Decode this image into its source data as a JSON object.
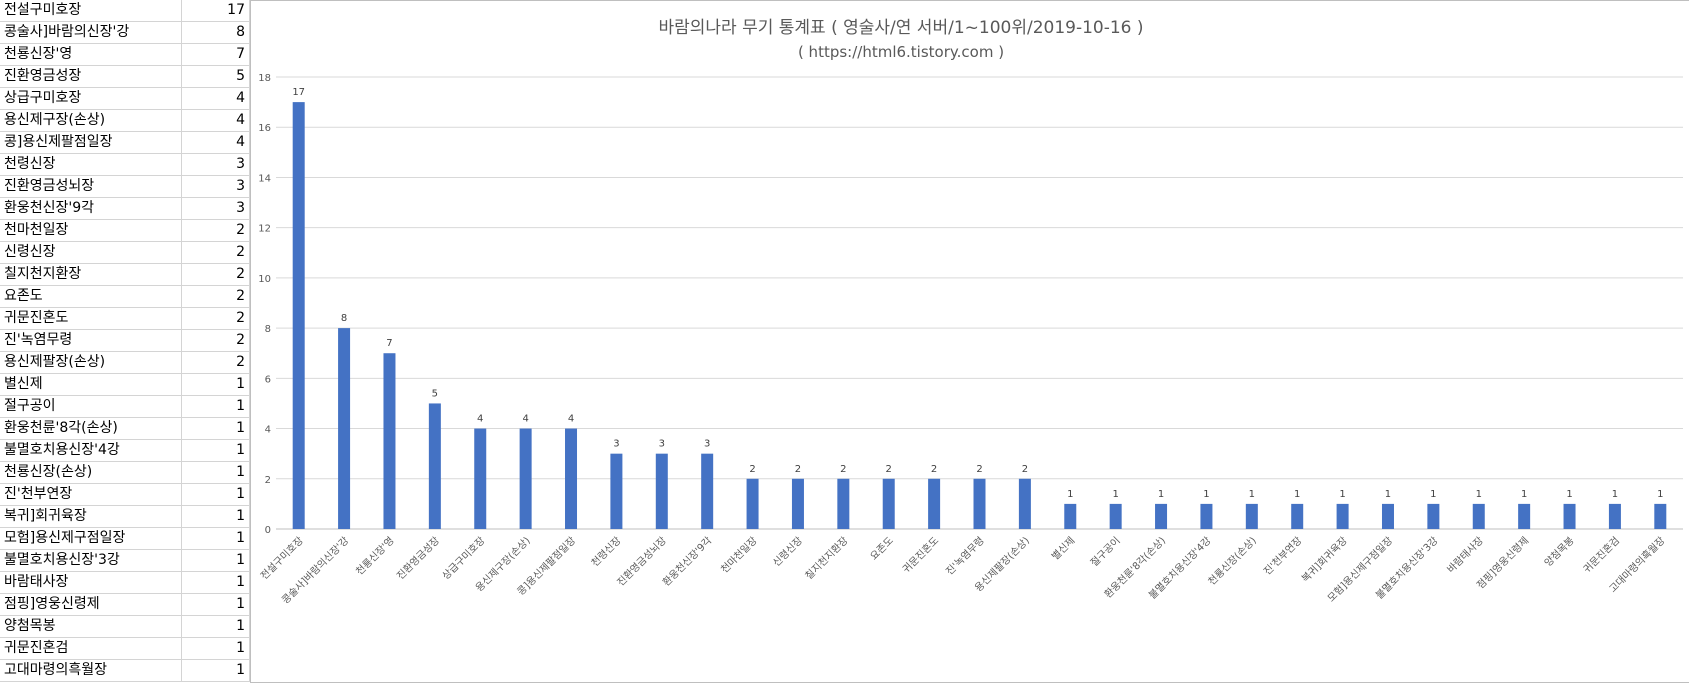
{
  "sheet": {
    "rows": [
      {
        "name": "전설구미호장",
        "count": "17"
      },
      {
        "name": "콩술사]바람의신장'강",
        "count": "8"
      },
      {
        "name": "천룡신장'영",
        "count": "7"
      },
      {
        "name": "진환영금성장",
        "count": "5"
      },
      {
        "name": "상급구미호장",
        "count": "4"
      },
      {
        "name": "용신제구장(손상)",
        "count": "4"
      },
      {
        "name": "콩]용신제팔점일장",
        "count": "4"
      },
      {
        "name": "천령신장",
        "count": "3"
      },
      {
        "name": "진환영금성뇌장",
        "count": "3"
      },
      {
        "name": "환웅천신장'9각",
        "count": "3"
      },
      {
        "name": "천마천일장",
        "count": "2"
      },
      {
        "name": "신령신장",
        "count": "2"
      },
      {
        "name": "칠지천지환장",
        "count": "2"
      },
      {
        "name": "요존도",
        "count": "2"
      },
      {
        "name": "귀문진혼도",
        "count": "2"
      },
      {
        "name": "진'녹염무령",
        "count": "2"
      },
      {
        "name": "용신제팔장(손상)",
        "count": "2"
      },
      {
        "name": "별신제",
        "count": "1"
      },
      {
        "name": "절구공이",
        "count": "1"
      },
      {
        "name": "환웅천륜'8각(손상)",
        "count": "1"
      },
      {
        "name": "불멸호치용신장'4강",
        "count": "1"
      },
      {
        "name": "천룡신장(손상)",
        "count": "1"
      },
      {
        "name": "진'천부연장",
        "count": "1"
      },
      {
        "name": "복귀]회귀육장",
        "count": "1"
      },
      {
        "name": "모험]용신제구점일장",
        "count": "1"
      },
      {
        "name": "불멸호치용신장'3강",
        "count": "1"
      },
      {
        "name": "바람태사장",
        "count": "1"
      },
      {
        "name": "점핑]영웅신령제",
        "count": "1"
      },
      {
        "name": "양첨목봉",
        "count": "1"
      },
      {
        "name": "귀문진혼검",
        "count": "1"
      },
      {
        "name": "고대마령의흑월장",
        "count": "1"
      }
    ]
  },
  "chart_data": {
    "type": "bar",
    "title": "바람의나라 무기 통계표 ( 영술사/연 서버/1~100위/2019-10-16 )",
    "subtitle": "( https://html6.tistory.com )",
    "xlabel": "",
    "ylabel": "",
    "ylim": [
      0,
      18
    ],
    "yticks": [
      0,
      2,
      4,
      6,
      8,
      10,
      12,
      14,
      16,
      18
    ],
    "grid": true,
    "bar_color": "#4472c4",
    "categories": [
      "전설구미호장",
      "콩술사]바람의신장'강",
      "천룡신장'영",
      "진환영금성장",
      "상급구미호장",
      "용신제구장(손상)",
      "콩]용신제팔점일장",
      "천령신장",
      "진환영금성뇌장",
      "환웅천신장'9각",
      "천마천일장",
      "신령신장",
      "칠지천지환장",
      "요존도",
      "귀문진혼도",
      "진'녹염무령",
      "용신제팔장(손상)",
      "별신제",
      "절구공이",
      "환웅천륜'8각(손상)",
      "불멸호치용신장'4강",
      "천룡신장(손상)",
      "진'천부연장",
      "복귀]회귀육장",
      "모험]용신제구점일장",
      "불멸호치용신장'3강",
      "바람태사장",
      "점핑]영웅신령제",
      "양첨목봉",
      "귀문진혼검",
      "고대마령의흑월장"
    ],
    "values": [
      17,
      8,
      7,
      5,
      4,
      4,
      4,
      3,
      3,
      3,
      2,
      2,
      2,
      2,
      2,
      2,
      2,
      1,
      1,
      1,
      1,
      1,
      1,
      1,
      1,
      1,
      1,
      1,
      1,
      1,
      1
    ]
  }
}
